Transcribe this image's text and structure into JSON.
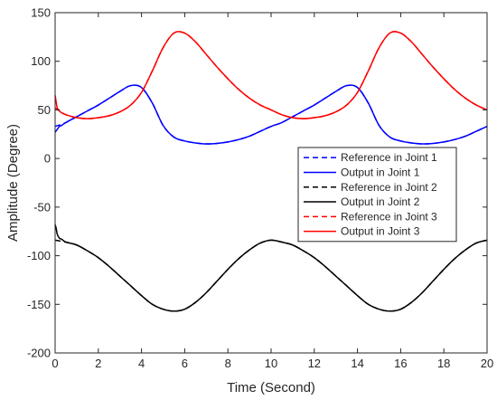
{
  "chart_data": {
    "type": "line",
    "xlabel": "Time (Second)",
    "ylabel": "Amplitude (Degree)",
    "xlim": [
      0,
      20
    ],
    "ylim": [
      -200,
      150
    ],
    "xticks": [
      0,
      2,
      4,
      6,
      8,
      10,
      12,
      14,
      16,
      18,
      20
    ],
    "yticks": [
      -200,
      -150,
      -100,
      -50,
      0,
      50,
      100,
      150
    ],
    "grid": false,
    "legend_position": "right",
    "series": [
      {
        "name": "Reference in Joint 1",
        "color": "#0000ff",
        "style": "dashed",
        "x": [
          0,
          0.5,
          1,
          1.5,
          2,
          2.5,
          3,
          3.5,
          4,
          4.5,
          5,
          5.5,
          6,
          6.5,
          7,
          7.5,
          8,
          8.5,
          9,
          9.5,
          10,
          10.5,
          11,
          11.5,
          12,
          12.5,
          13,
          13.5,
          14,
          14.5,
          15,
          15.5,
          16,
          16.5,
          17,
          17.5,
          18,
          18.5,
          19,
          19.5,
          20
        ],
        "y": [
          33,
          37,
          43,
          49,
          55,
          62,
          69,
          75,
          73,
          57,
          34,
          22,
          18,
          16,
          15,
          15.5,
          17,
          19.5,
          23,
          28,
          33,
          37,
          43,
          49,
          55,
          62,
          69,
          75,
          73,
          57,
          34,
          22,
          18,
          16,
          15,
          15.5,
          17,
          19.5,
          23,
          28,
          33
        ]
      },
      {
        "name": "Output in Joint 1",
        "color": "#0000ff",
        "style": "solid",
        "x": [
          0,
          0.1,
          0.2,
          0.3,
          0.5,
          1,
          1.5,
          2,
          2.5,
          3,
          3.5,
          4,
          4.5,
          5,
          5.5,
          6,
          6.5,
          7,
          7.5,
          8,
          8.5,
          9,
          9.5,
          10,
          10.5,
          11,
          11.5,
          12,
          12.5,
          13,
          13.5,
          14,
          14.5,
          15,
          15.5,
          16,
          16.5,
          17,
          17.5,
          18,
          18.5,
          19,
          19.5,
          20
        ],
        "y": [
          27,
          30,
          33,
          34,
          37,
          43,
          49,
          55,
          62,
          69,
          75,
          73,
          57,
          34,
          22,
          18,
          16,
          15,
          15.5,
          17,
          19.5,
          23,
          28,
          33,
          37,
          43,
          49,
          55,
          62,
          69,
          75,
          73,
          57,
          34,
          22,
          18,
          16,
          15,
          15.5,
          17,
          19.5,
          23,
          28,
          33
        ]
      },
      {
        "name": "Reference in Joint 2",
        "color": "#000000",
        "style": "dashed",
        "x": [
          0,
          0.5,
          1,
          1.5,
          2,
          2.5,
          3,
          3.5,
          4,
          4.5,
          5,
          5.5,
          6,
          6.5,
          7,
          7.5,
          8,
          8.5,
          9,
          9.5,
          10,
          10.5,
          11,
          11.5,
          12,
          12.5,
          13,
          13.5,
          14,
          14.5,
          15,
          15.5,
          16,
          16.5,
          17,
          17.5,
          18,
          18.5,
          19,
          19.5,
          20
        ],
        "y": [
          -84,
          -86,
          -89,
          -95,
          -102,
          -111,
          -121,
          -131,
          -141,
          -150,
          -155,
          -157,
          -155,
          -148,
          -138,
          -126,
          -114,
          -103,
          -94,
          -87,
          -84,
          -86,
          -89,
          -95,
          -102,
          -111,
          -121,
          -131,
          -141,
          -150,
          -155,
          -157,
          -155,
          -148,
          -138,
          -126,
          -114,
          -103,
          -94,
          -87,
          -84
        ]
      },
      {
        "name": "Output in Joint 2",
        "color": "#000000",
        "style": "solid",
        "x": [
          0,
          0.05,
          0.1,
          0.2,
          0.3,
          0.5,
          1,
          1.5,
          2,
          2.5,
          3,
          3.5,
          4,
          4.5,
          5,
          5.5,
          6,
          6.5,
          7,
          7.5,
          8,
          8.5,
          9,
          9.5,
          10,
          10.5,
          11,
          11.5,
          12,
          12.5,
          13,
          13.5,
          14,
          14.5,
          15,
          15.5,
          16,
          16.5,
          17,
          17.5,
          18,
          18.5,
          19,
          19.5,
          20
        ],
        "y": [
          -68,
          -72,
          -78,
          -82,
          -83,
          -86,
          -89,
          -95,
          -102,
          -111,
          -121,
          -131,
          -141,
          -150,
          -155,
          -157,
          -155,
          -148,
          -138,
          -126,
          -114,
          -103,
          -94,
          -87,
          -84,
          -86,
          -89,
          -95,
          -102,
          -111,
          -121,
          -131,
          -141,
          -150,
          -155,
          -157,
          -155,
          -148,
          -138,
          -126,
          -114,
          -103,
          -94,
          -87,
          -84
        ]
      },
      {
        "name": "Reference in Joint 3",
        "color": "#ff0000",
        "style": "dashed",
        "x": [
          0,
          0.5,
          1,
          1.5,
          2,
          2.5,
          3,
          3.5,
          4,
          4.5,
          5,
          5.5,
          6,
          6.5,
          7,
          7.5,
          8,
          8.5,
          9,
          9.5,
          10,
          10.5,
          11,
          11.5,
          12,
          12.5,
          13,
          13.5,
          14,
          14.5,
          15,
          15.5,
          16,
          16.5,
          17,
          17.5,
          18,
          18.5,
          19,
          19.5,
          20
        ],
        "y": [
          52,
          45,
          42,
          41,
          42,
          44,
          48,
          55,
          68,
          90,
          114,
          129,
          129,
          120,
          107,
          94,
          82,
          71,
          62,
          55,
          50,
          45,
          42,
          41,
          42,
          44,
          48,
          55,
          68,
          90,
          114,
          129,
          129,
          120,
          107,
          94,
          82,
          71,
          62,
          55,
          50
        ]
      },
      {
        "name": "Output in Joint 3",
        "color": "#ff0000",
        "style": "solid",
        "x": [
          0,
          0.05,
          0.1,
          0.2,
          0.3,
          0.5,
          1,
          1.5,
          2,
          2.5,
          3,
          3.5,
          4,
          4.5,
          5,
          5.5,
          6,
          6.5,
          7,
          7.5,
          8,
          8.5,
          9,
          9.5,
          10,
          10.5,
          11,
          11.5,
          12,
          12.5,
          13,
          13.5,
          14,
          14.5,
          15,
          15.5,
          16,
          16.5,
          17,
          17.5,
          18,
          18.5,
          19,
          19.5,
          20
        ],
        "y": [
          65,
          58,
          52,
          49,
          47,
          45,
          42,
          41,
          42,
          44,
          48,
          55,
          68,
          90,
          114,
          129,
          129,
          120,
          107,
          94,
          82,
          71,
          62,
          55,
          50,
          45,
          42,
          41,
          42,
          44,
          48,
          55,
          68,
          90,
          114,
          129,
          129,
          120,
          107,
          94,
          82,
          71,
          62,
          55,
          50
        ]
      }
    ]
  }
}
